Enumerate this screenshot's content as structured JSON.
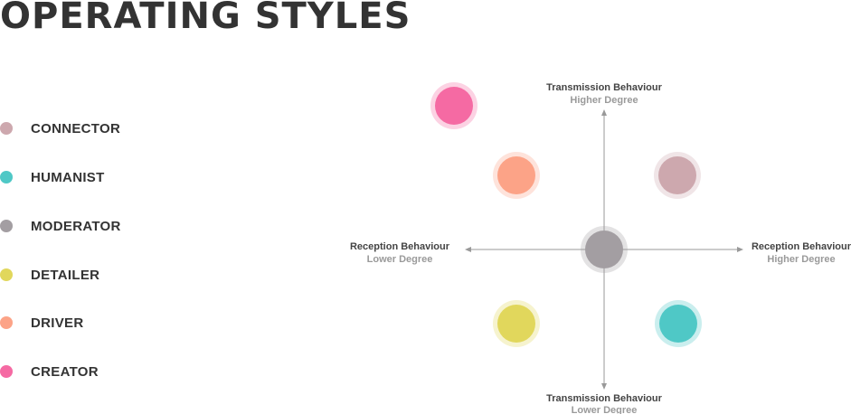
{
  "title": "OPERATING STYLES",
  "legend": [
    {
      "label": "CONNECTOR",
      "color": "#cda8ae"
    },
    {
      "label": "HUMANIST",
      "color": "#4fc8c6"
    },
    {
      "label": "MODERATOR",
      "color": "#a39ea2"
    },
    {
      "label": "DETAILER",
      "color": "#e1d75c"
    },
    {
      "label": "DRIVER",
      "color": "#fca387"
    },
    {
      "label": "CREATOR",
      "color": "#f56aa3"
    }
  ],
  "axes": {
    "top": {
      "title": "Transmission Behaviour",
      "subtitle": "Higher Degree"
    },
    "bottom": {
      "title": "Transmission Behaviour",
      "subtitle": "Lower Degree"
    },
    "left": {
      "title": "Reception Behaviour",
      "subtitle": "Lower Degree"
    },
    "right": {
      "title": "Reception Behaviour",
      "subtitle": "Higher Degree"
    }
  },
  "colors": {
    "axis_line": "#999999",
    "text": "#333333"
  }
}
